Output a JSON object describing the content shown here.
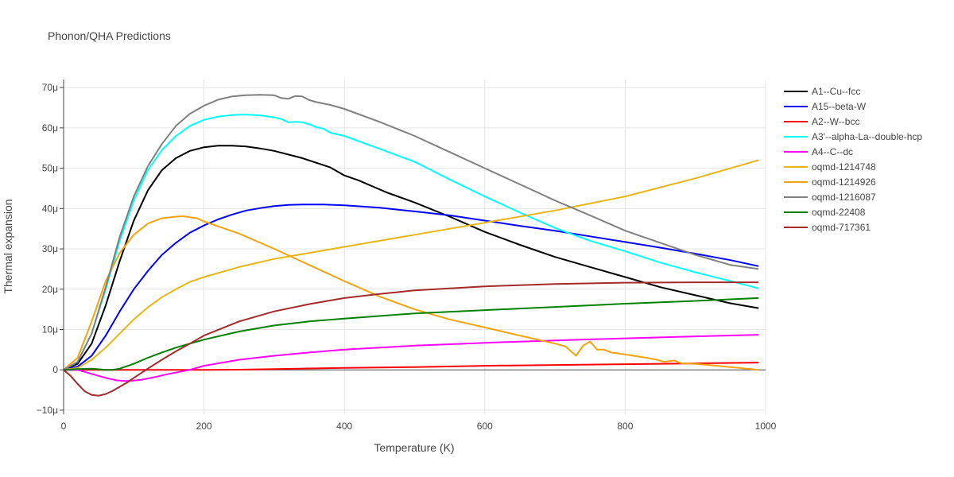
{
  "chart_data": {
    "type": "line",
    "title": "Phonon/QHA Predictions",
    "xlabel": "Temperature (K)",
    "ylabel": "Thermal expansion",
    "xlim": [
      0,
      1000
    ],
    "ylim": [
      -11,
      72
    ],
    "xticks": [
      0,
      200,
      400,
      600,
      800,
      1000
    ],
    "xtick_labels": [
      "0",
      "200",
      "400",
      "600",
      "800",
      "1000"
    ],
    "yticks": [
      -10,
      0,
      10,
      20,
      30,
      40,
      50,
      60,
      70
    ],
    "ytick_labels": [
      "−10μ",
      "0",
      "10μ",
      "20μ",
      "30μ",
      "40μ",
      "50μ",
      "60μ",
      "70μ"
    ],
    "grid": true,
    "legend_position": "top-right",
    "series": [
      {
        "name": "A1--Cu--fcc",
        "color": "#000000",
        "x": [
          0,
          20,
          40,
          60,
          80,
          100,
          120,
          140,
          160,
          180,
          200,
          220,
          240,
          260,
          280,
          300,
          340,
          380,
          400,
          420,
          460,
          500,
          550,
          600,
          650,
          700,
          750,
          800,
          850,
          900,
          950,
          990
        ],
        "y": [
          0,
          1.5,
          6.5,
          16,
          27,
          37,
          44.5,
          49.5,
          52.5,
          54.3,
          55.2,
          55.6,
          55.6,
          55.4,
          54.9,
          54.3,
          52.5,
          50.2,
          48.2,
          47,
          44,
          41.5,
          38,
          34.2,
          31,
          28,
          25.5,
          23,
          20.5,
          18.5,
          16.5,
          15.3
        ]
      },
      {
        "name": "A15--beta-W",
        "color": "#0000ff",
        "x": [
          0,
          20,
          40,
          60,
          80,
          100,
          120,
          140,
          160,
          180,
          200,
          220,
          240,
          260,
          280,
          300,
          320,
          340,
          370,
          400,
          450,
          500,
          550,
          600,
          650,
          700,
          750,
          800,
          850,
          900,
          950,
          990
        ],
        "y": [
          0,
          0.8,
          3.5,
          8.5,
          14.5,
          20,
          24.5,
          28.5,
          31.5,
          34,
          35.8,
          37.3,
          38.5,
          39.5,
          40.1,
          40.6,
          40.9,
          41,
          41,
          40.8,
          40.2,
          39.3,
          38.3,
          37,
          35.7,
          34.5,
          33.1,
          31.7,
          30.3,
          28.8,
          27.2,
          25.7
        ]
      },
      {
        "name": "A2--W--bcc",
        "color": "#ff0000",
        "x": [
          0,
          50,
          100,
          150,
          200,
          250,
          300,
          400,
          500,
          600,
          700,
          800,
          900,
          990
        ],
        "y": [
          0,
          0,
          0,
          0,
          0,
          0.05,
          0.2,
          0.5,
          0.7,
          1,
          1.2,
          1.4,
          1.6,
          1.8
        ]
      },
      {
        "name": "A3'--alpha-La--double-hcp",
        "color": "#00ffff",
        "x": [
          0,
          20,
          40,
          60,
          80,
          100,
          120,
          140,
          160,
          180,
          200,
          220,
          240,
          260,
          280,
          300,
          310,
          320,
          330,
          340,
          350,
          360,
          370,
          380,
          400,
          450,
          500,
          550,
          600,
          650,
          700,
          750,
          800,
          850,
          900,
          950,
          990
        ],
        "y": [
          0,
          2,
          9,
          20,
          32,
          42,
          49.5,
          54.5,
          58,
          60.5,
          62,
          62.8,
          63.2,
          63.3,
          63.1,
          62.6,
          62.2,
          61.4,
          61.5,
          61.4,
          60.9,
          60.2,
          59.8,
          58.8,
          58,
          54.8,
          51.6,
          47.2,
          43,
          39,
          35.2,
          32,
          29.4,
          26.6,
          24.2,
          22,
          20.2
        ]
      },
      {
        "name": "A4--C--dc",
        "color": "#ff00ff",
        "x": [
          0,
          20,
          40,
          60,
          75,
          90,
          110,
          130,
          150,
          180,
          200,
          250,
          300,
          350,
          400,
          500,
          600,
          700,
          800,
          900,
          990
        ],
        "y": [
          0,
          0,
          -1,
          -2,
          -2.6,
          -2.8,
          -2.5,
          -1.8,
          -1,
          0,
          1,
          2.5,
          3.5,
          4.3,
          5,
          6,
          6.7,
          7.3,
          7.8,
          8.3,
          8.7
        ]
      },
      {
        "name": "oqmd-1214748",
        "color": "#e6b617",
        "x": [
          0,
          20,
          40,
          60,
          80,
          100,
          120,
          140,
          160,
          180,
          200,
          250,
          300,
          350,
          400,
          500,
          600,
          700,
          800,
          900,
          990
        ],
        "y": [
          0,
          0.5,
          2.5,
          5.5,
          9,
          12.5,
          15.5,
          18,
          20,
          21.8,
          23,
          25.5,
          27.5,
          29,
          30.5,
          33.5,
          36.5,
          39.5,
          43,
          47.5,
          52
        ]
      },
      {
        "name": "oqmd-1214926",
        "color": "#f5a30c",
        "x": [
          0,
          20,
          40,
          60,
          80,
          100,
          120,
          140,
          160,
          170,
          190,
          200,
          250,
          300,
          350,
          400,
          450,
          500,
          550,
          600,
          650,
          700,
          715,
          730,
          740,
          750,
          760,
          770,
          780,
          800,
          830,
          845,
          855,
          870,
          880,
          900,
          950,
          990
        ],
        "y": [
          0,
          3,
          12,
          22,
          29,
          33.5,
          36.3,
          37.6,
          38,
          38.1,
          37.6,
          36.8,
          33.8,
          30,
          26,
          22,
          18.2,
          15,
          12.5,
          10.5,
          8.5,
          6.5,
          5.8,
          3.5,
          6,
          7,
          5,
          5,
          4.3,
          3.8,
          3,
          2.5,
          2,
          2.3,
          1.6,
          1.5,
          0.7,
          0
        ]
      },
      {
        "name": "oqmd-1216087",
        "color": "#808080",
        "x": [
          0,
          20,
          40,
          60,
          80,
          100,
          120,
          140,
          160,
          180,
          200,
          220,
          240,
          260,
          280,
          300,
          310,
          320,
          330,
          340,
          350,
          360,
          380,
          400,
          450,
          500,
          550,
          600,
          650,
          700,
          750,
          800,
          850,
          900,
          950,
          990
        ],
        "y": [
          0,
          2,
          9,
          20.5,
          33,
          43,
          50.5,
          56,
          60.5,
          63.5,
          65.5,
          67,
          67.8,
          68.1,
          68.2,
          68.1,
          67.4,
          67.2,
          67.9,
          67.8,
          66.9,
          66.4,
          65.7,
          64.7,
          61.5,
          58,
          54,
          50,
          46,
          42,
          38.3,
          34.5,
          31.5,
          28.5,
          26,
          25
        ]
      },
      {
        "name": "oqmd-22408",
        "color": "#008000",
        "x": [
          0,
          20,
          40,
          60,
          70,
          80,
          100,
          120,
          140,
          160,
          180,
          200,
          250,
          300,
          350,
          400,
          500,
          600,
          700,
          800,
          900,
          990
        ],
        "y": [
          0,
          0.2,
          0.3,
          0,
          0,
          0.3,
          1.5,
          3,
          4.3,
          5.5,
          6.5,
          7.5,
          9.5,
          11,
          12,
          12.7,
          14,
          14.8,
          15.6,
          16.4,
          17.1,
          17.8
        ]
      },
      {
        "name": "oqmd-717361",
        "color": "#a52a2a",
        "x": [
          0,
          10,
          20,
          30,
          40,
          50,
          60,
          70,
          80,
          90,
          100,
          120,
          140,
          160,
          180,
          200,
          250,
          300,
          350,
          400,
          450,
          500,
          600,
          700,
          800,
          900,
          990
        ],
        "y": [
          0,
          -1.5,
          -3.5,
          -5.3,
          -6.2,
          -6.4,
          -6,
          -5.2,
          -4.2,
          -3.2,
          -2,
          0.3,
          2.5,
          4.6,
          6.5,
          8.5,
          12,
          14.5,
          16.3,
          17.8,
          18.8,
          19.7,
          20.7,
          21.3,
          21.6,
          21.7,
          21.7
        ]
      }
    ]
  }
}
